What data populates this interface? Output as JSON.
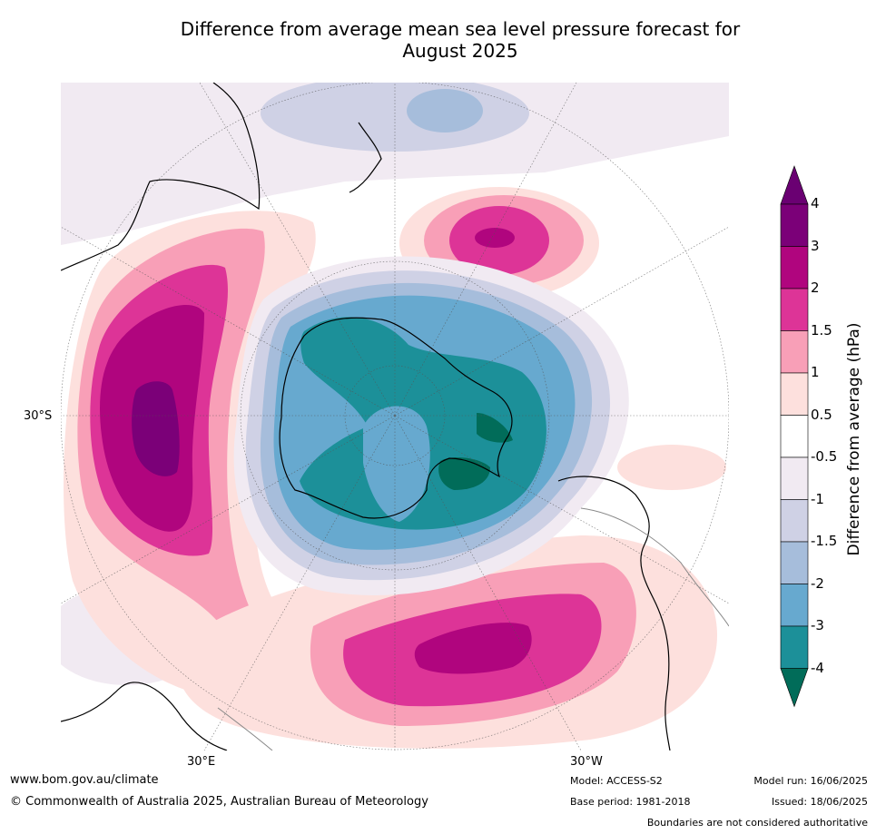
{
  "title": {
    "line1": "Difference from average mean sea level pressure forecast for",
    "line2": "August 2025"
  },
  "map": {
    "projection": "south polar stereographic",
    "labels": {
      "lat_30s": "30°S",
      "lon_30e": "30°E",
      "lon_30w": "30°W"
    },
    "anomaly_centres": [
      {
        "name": "south-indian-ocean-high",
        "max_hpa": 3.5
      },
      {
        "name": "south-pacific-high",
        "max_hpa": 3
      },
      {
        "name": "south-atlantic-high",
        "max_hpa": 3
      },
      {
        "name": "antarctic-low",
        "min_hpa": -4
      }
    ]
  },
  "colorbar": {
    "label": "Difference from average (hPa)",
    "ticks": [
      "4",
      "3",
      "2",
      "1.5",
      "1",
      "0.5",
      "-0.5",
      "-1",
      "-1.5",
      "-2",
      "-3",
      "-4"
    ],
    "colors": [
      "#6a0072",
      "#7b0078",
      "#b0057e",
      "#dd3497",
      "#f89fb7",
      "#fde0dd",
      "#ffffff",
      "#f1eaf2",
      "#cfd1e5",
      "#a6bddb",
      "#67a9cf",
      "#1c9099",
      "#016c59"
    ]
  },
  "footer": {
    "url": "www.bom.gov.au/climate",
    "copyright": "© Commonwealth of Australia 2025, Australian Bureau of Meteorology",
    "model": "Model: ACCESS-S2",
    "base_period": "Base period: 1981-2018",
    "model_run": "Model run: 16/06/2025",
    "issued": "Issued: 18/06/2025",
    "disclaimer": "Boundaries are not considered authoritative"
  }
}
